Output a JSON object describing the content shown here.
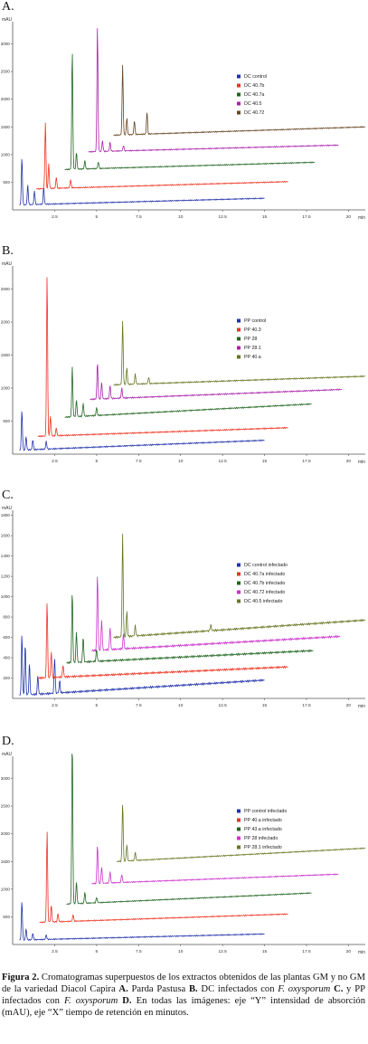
{
  "panels": [
    {
      "letter": "A.",
      "chart_data": {
        "type": "line",
        "ylabel": "mAU",
        "xlabel": "min",
        "xlim": [
          0,
          21
        ],
        "ylim": [
          0,
          3400
        ],
        "x_ticks": [
          "2.5",
          "5",
          "7.5",
          "10",
          "12.5",
          "15",
          "17.5",
          "20"
        ],
        "y_ticks": [
          "500",
          "1000",
          "1500",
          "2000",
          "2500",
          "3000"
        ],
        "x_tick_values": [
          2.5,
          5,
          7.5,
          10,
          12.5,
          15,
          17.5,
          20
        ],
        "y_tick_values": [
          500,
          1000,
          1500,
          2000,
          2500,
          3000
        ],
        "legend_position": "right",
        "series": [
          {
            "name": "DC control",
            "color": "#2233aa",
            "x_start": 0.4,
            "x_end": 15.0,
            "baseline": 90,
            "slope": 120,
            "peaks": [
              [
                0.55,
                850
              ],
              [
                0.9,
                350
              ],
              [
                1.3,
                250
              ],
              [
                1.85,
                300
              ]
            ]
          },
          {
            "name": "DC 40.7b",
            "color": "#ee3322",
            "x_start": 1.4,
            "x_end": 16.4,
            "baseline": 380,
            "slope": 130,
            "peaks": [
              [
                1.95,
                1200
              ],
              [
                2.15,
                450
              ],
              [
                2.6,
                200
              ],
              [
                3.45,
                150
              ]
            ]
          },
          {
            "name": "DC 40.7a",
            "color": "#226622",
            "x_start": 3.1,
            "x_end": 18.0,
            "baseline": 730,
            "slope": 130,
            "peaks": [
              [
                3.55,
                2150
              ],
              [
                3.8,
                300
              ],
              [
                4.3,
                150
              ],
              [
                5.1,
                120
              ]
            ]
          },
          {
            "name": "DC 40.5",
            "color": "#aa22aa",
            "x_start": 4.5,
            "x_end": 19.4,
            "baseline": 1050,
            "slope": 120,
            "peaks": [
              [
                5.05,
                2250
              ],
              [
                5.35,
                200
              ],
              [
                5.8,
                160
              ],
              [
                6.6,
                100
              ]
            ]
          },
          {
            "name": "DC 40.72",
            "color": "#664422",
            "x_start": 6.0,
            "x_end": 21.0,
            "baseline": 1350,
            "slope": 150,
            "peaks": [
              [
                6.55,
                1250
              ],
              [
                6.8,
                300
              ],
              [
                7.25,
                250
              ],
              [
                8.0,
                400
              ]
            ]
          }
        ]
      }
    },
    {
      "letter": "B.",
      "chart_data": {
        "type": "line",
        "ylabel": "mAU",
        "xlabel": "min",
        "xlim": [
          0,
          21
        ],
        "ylim": [
          0,
          2850
        ],
        "x_ticks": [
          "2.5",
          "5",
          "7.5",
          "10",
          "12.5",
          "15",
          "17.5",
          "20"
        ],
        "y_ticks": [
          "500",
          "1000",
          "1500",
          "2000",
          "2500"
        ],
        "x_tick_values": [
          2.5,
          5,
          7.5,
          10,
          12.5,
          15,
          17.5,
          20
        ],
        "y_tick_values": [
          500,
          1000,
          1500,
          2000,
          2500
        ],
        "legend_position": "right",
        "series": [
          {
            "name": "PP control",
            "color": "#2233aa",
            "x_start": 0.4,
            "x_end": 15.0,
            "baseline": 60,
            "slope": 150,
            "peaks": [
              [
                0.55,
                600
              ],
              [
                0.8,
                200
              ],
              [
                1.2,
                150
              ],
              [
                2.0,
                120
              ]
            ]
          },
          {
            "name": "PP 40.3",
            "color": "#ee3322",
            "x_start": 1.5,
            "x_end": 16.4,
            "baseline": 270,
            "slope": 130,
            "peaks": [
              [
                2.05,
                2450
              ],
              [
                2.25,
                300
              ],
              [
                2.6,
                120
              ]
            ]
          },
          {
            "name": "PP 28",
            "color": "#226622",
            "x_start": 3.1,
            "x_end": 17.8,
            "baseline": 560,
            "slope": 200,
            "peaks": [
              [
                3.55,
                750
              ],
              [
                3.8,
                250
              ],
              [
                4.2,
                200
              ],
              [
                5.0,
                120
              ]
            ]
          },
          {
            "name": "PP 28.1",
            "color": "#aa22aa",
            "x_start": 4.6,
            "x_end": 19.6,
            "baseline": 830,
            "slope": 150,
            "peaks": [
              [
                5.05,
                550
              ],
              [
                5.3,
                250
              ],
              [
                5.8,
                200
              ],
              [
                6.5,
                150
              ]
            ]
          },
          {
            "name": "PP 40.a",
            "color": "#667722",
            "x_start": 6.0,
            "x_end": 21.0,
            "baseline": 1050,
            "slope": 130,
            "peaks": [
              [
                6.55,
                950
              ],
              [
                6.8,
                250
              ],
              [
                7.3,
                150
              ],
              [
                8.1,
                100
              ]
            ]
          }
        ]
      }
    },
    {
      "letter": "C.",
      "chart_data": {
        "type": "line",
        "ylabel": "mAU",
        "xlabel": "min",
        "xlim": [
          0,
          21
        ],
        "ylim": [
          0,
          1850
        ],
        "x_ticks": [
          "2.5",
          "5",
          "7.5",
          "10",
          "12.5",
          "15",
          "17.5",
          "20"
        ],
        "y_ticks": [
          "200",
          "400",
          "600",
          "800",
          "1000",
          "1200",
          "1400",
          "1600",
          "1800"
        ],
        "x_tick_values": [
          2.5,
          5,
          7.5,
          10,
          12.5,
          15,
          17.5,
          20
        ],
        "y_tick_values": [
          200,
          400,
          600,
          800,
          1000,
          1200,
          1400,
          1600,
          1800
        ],
        "legend_position": "right",
        "series": [
          {
            "name": "DC control infectado",
            "color": "#2233aa",
            "x_start": 0.4,
            "x_end": 15.0,
            "baseline": 30,
            "slope": 150,
            "peaks": [
              [
                0.55,
                600
              ],
              [
                0.75,
                500
              ],
              [
                1.0,
                300
              ],
              [
                1.5,
                180
              ],
              [
                2.5,
                350
              ],
              [
                2.8,
                120
              ]
            ]
          },
          {
            "name": "DC 40.7a infectado",
            "color": "#ee3322",
            "x_start": 1.5,
            "x_end": 16.4,
            "baseline": 200,
            "slope": 110,
            "peaks": [
              [
                2.05,
                750
              ],
              [
                2.3,
                250
              ],
              [
                3.0,
                120
              ]
            ]
          },
          {
            "name": "DC 40.7b infectado",
            "color": "#226622",
            "x_start": 3.2,
            "x_end": 17.9,
            "baseline": 350,
            "slope": 120,
            "peaks": [
              [
                3.55,
                700
              ],
              [
                3.8,
                300
              ],
              [
                4.2,
                250
              ],
              [
                5.0,
                120
              ]
            ]
          },
          {
            "name": "DC 40.72 infectado",
            "color": "#cc33cc",
            "x_start": 4.7,
            "x_end": 19.5,
            "baseline": 470,
            "slope": 140,
            "peaks": [
              [
                5.05,
                750
              ],
              [
                5.3,
                300
              ],
              [
                5.8,
                220
              ],
              [
                6.6,
                150
              ]
            ]
          },
          {
            "name": "DC 40.5 infectado",
            "color": "#667722",
            "x_start": 6.0,
            "x_end": 21.0,
            "baseline": 600,
            "slope": 170,
            "peaks": [
              [
                6.55,
                1000
              ],
              [
                6.8,
                250
              ],
              [
                7.3,
                100
              ],
              [
                11.8,
                60
              ]
            ]
          }
        ]
      }
    },
    {
      "letter": "D.",
      "chart_data": {
        "type": "line",
        "ylabel": "mAU",
        "xlabel": "min",
        "xlim": [
          0,
          21
        ],
        "ylim": [
          0,
          3400
        ],
        "x_ticks": [
          "2.5",
          "5",
          "7.5",
          "10",
          "12.5",
          "15",
          "17.5",
          "20"
        ],
        "y_ticks": [
          "500",
          "1000",
          "1500",
          "2000",
          "2500",
          "3000"
        ],
        "x_tick_values": [
          2.5,
          5,
          7.5,
          10,
          12.5,
          15,
          17.5,
          20
        ],
        "y_tick_values": [
          500,
          1000,
          1500,
          2000,
          2500,
          3000
        ],
        "legend_position": "right",
        "series": [
          {
            "name": "PP control infectado",
            "color": "#2233aa",
            "x_start": 0.4,
            "x_end": 15.0,
            "baseline": 80,
            "slope": 110,
            "peaks": [
              [
                0.55,
                700
              ],
              [
                0.8,
                200
              ],
              [
                1.2,
                120
              ],
              [
                2.0,
                80
              ]
            ]
          },
          {
            "name": "PP 40.a infectado",
            "color": "#ee3322",
            "x_start": 1.6,
            "x_end": 16.4,
            "baseline": 400,
            "slope": 150,
            "peaks": [
              [
                2.05,
                1650
              ],
              [
                2.3,
                300
              ],
              [
                2.7,
                150
              ],
              [
                3.6,
                120
              ]
            ]
          },
          {
            "name": "PP 43.a infectado",
            "color": "#226622",
            "x_start": 3.2,
            "x_end": 17.8,
            "baseline": 730,
            "slope": 200,
            "peaks": [
              [
                3.55,
                2950
              ],
              [
                3.8,
                400
              ],
              [
                4.3,
                200
              ],
              [
                5.0,
                100
              ]
            ]
          },
          {
            "name": "PP 28 infectado",
            "color": "#cc33cc",
            "x_start": 4.7,
            "x_end": 19.4,
            "baseline": 1100,
            "slope": 170,
            "peaks": [
              [
                5.05,
                700
              ],
              [
                5.3,
                300
              ],
              [
                5.8,
                200
              ],
              [
                6.5,
                150
              ]
            ]
          },
          {
            "name": "PP 28.1 infectado",
            "color": "#667722",
            "x_start": 6.2,
            "x_end": 21.0,
            "baseline": 1500,
            "slope": 240,
            "peaks": [
              [
                6.55,
                1050
              ],
              [
                6.8,
                300
              ],
              [
                7.3,
                150
              ]
            ]
          }
        ]
      }
    }
  ],
  "caption": {
    "lead": "Figura 2.",
    "t1": " Cromatogramas superpuestos de los extractos obtenidos de las plantas GM y no GM de la variedad Diacol Capira ",
    "bA": "A.",
    "t2": " Parda Pastusa ",
    "bB": "B.",
    "t3": " DC infectados con ",
    "i1": "F. oxysporum",
    "bC": " C.",
    "t4": " y PP infectados con ",
    "i2": "F. oxysporum",
    "bD": " D.",
    "t5": " En todas las imágenes: eje “Y” intensidad de absorción (mAU), eje “X” tiempo de retención en minutos."
  }
}
